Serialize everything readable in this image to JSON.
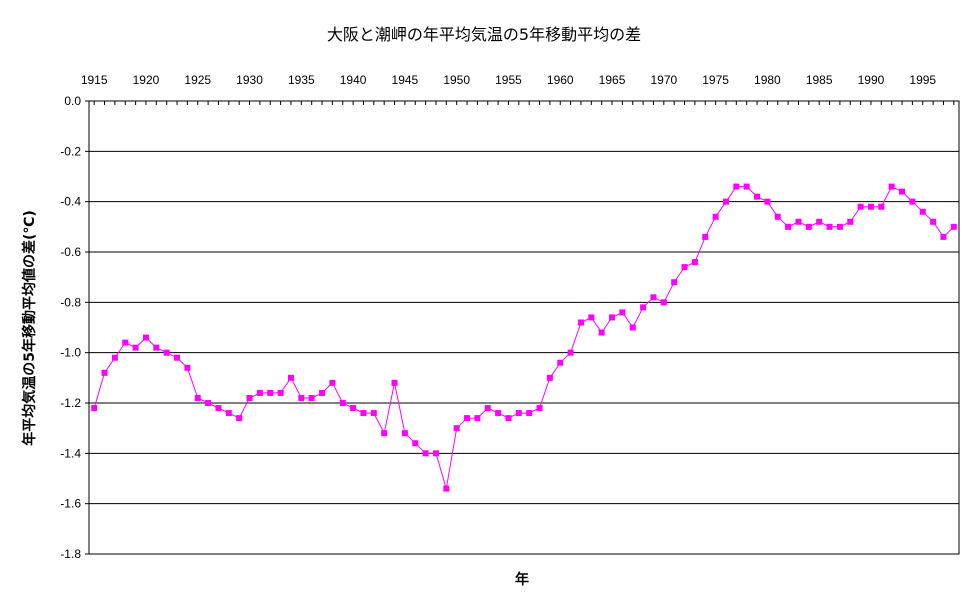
{
  "chart_data": {
    "type": "line",
    "title": "大阪と潮岬の年平均気温の5年移動平均の差",
    "xlabel": "年",
    "ylabel": "年平均気温の5年移動平均値の差(℃)",
    "xlim": [
      1914.5,
      1998.5
    ],
    "ylim": [
      -1.8,
      0.0
    ],
    "x_ticks": [
      1915,
      1920,
      1925,
      1930,
      1935,
      1940,
      1945,
      1950,
      1955,
      1960,
      1965,
      1970,
      1975,
      1980,
      1985,
      1990,
      1995
    ],
    "y_ticks": [
      0.0,
      -0.2,
      -0.4,
      -0.6,
      -0.8,
      -1.0,
      -1.2,
      -1.4,
      -1.6,
      -1.8
    ],
    "y_tick_labels": [
      "0.0",
      "-0.2",
      "-0.4",
      "-0.6",
      "-0.8",
      "-1.0",
      "-1.2",
      "-1.4",
      "-1.6",
      "-1.8"
    ],
    "x_axis_position": "top",
    "grid": "horizontal",
    "legend": "none",
    "series_color": "#ff00ff",
    "series": [
      {
        "x": [
          1915,
          1916,
          1917,
          1918,
          1919,
          1920,
          1921,
          1922,
          1923,
          1924,
          1925,
          1926,
          1927,
          1928,
          1929,
          1930,
          1931,
          1932,
          1933,
          1934,
          1935,
          1936,
          1937,
          1938,
          1939,
          1940,
          1941,
          1942,
          1943,
          1944,
          1945,
          1946,
          1947,
          1948,
          1949,
          1950,
          1951,
          1952,
          1953,
          1954,
          1955,
          1956,
          1957,
          1958,
          1959,
          1960,
          1961,
          1962,
          1963,
          1964,
          1965,
          1966,
          1967,
          1968,
          1969,
          1970,
          1971,
          1972,
          1973,
          1974,
          1975,
          1976,
          1977,
          1978,
          1979,
          1980,
          1981,
          1982,
          1983,
          1984,
          1985,
          1986,
          1987,
          1988,
          1989,
          1990,
          1991,
          1992,
          1993,
          1994,
          1995,
          1996,
          1997,
          1998
        ],
        "values": [
          -1.22,
          -1.08,
          -1.02,
          -0.96,
          -0.98,
          -0.94,
          -0.98,
          -1.0,
          -1.02,
          -1.06,
          -1.18,
          -1.2,
          -1.22,
          -1.24,
          -1.26,
          -1.18,
          -1.16,
          -1.16,
          -1.16,
          -1.1,
          -1.18,
          -1.18,
          -1.16,
          -1.12,
          -1.2,
          -1.22,
          -1.24,
          -1.24,
          -1.32,
          -1.12,
          -1.32,
          -1.36,
          -1.4,
          -1.4,
          -1.54,
          -1.3,
          -1.26,
          -1.26,
          -1.22,
          -1.24,
          -1.26,
          -1.24,
          -1.24,
          -1.22,
          -1.1,
          -1.04,
          -1.0,
          -0.88,
          -0.86,
          -0.92,
          -0.86,
          -0.84,
          -0.9,
          -0.82,
          -0.78,
          -0.8,
          -0.72,
          -0.66,
          -0.64,
          -0.54,
          -0.46,
          -0.4,
          -0.34,
          -0.34,
          -0.38,
          -0.4,
          -0.46,
          -0.5,
          -0.48,
          -0.5,
          -0.48,
          -0.5,
          -0.5,
          -0.48,
          -0.42,
          -0.42,
          -0.42,
          -0.34,
          -0.36,
          -0.4,
          -0.44,
          -0.48,
          -0.54,
          -0.5
        ]
      }
    ]
  }
}
